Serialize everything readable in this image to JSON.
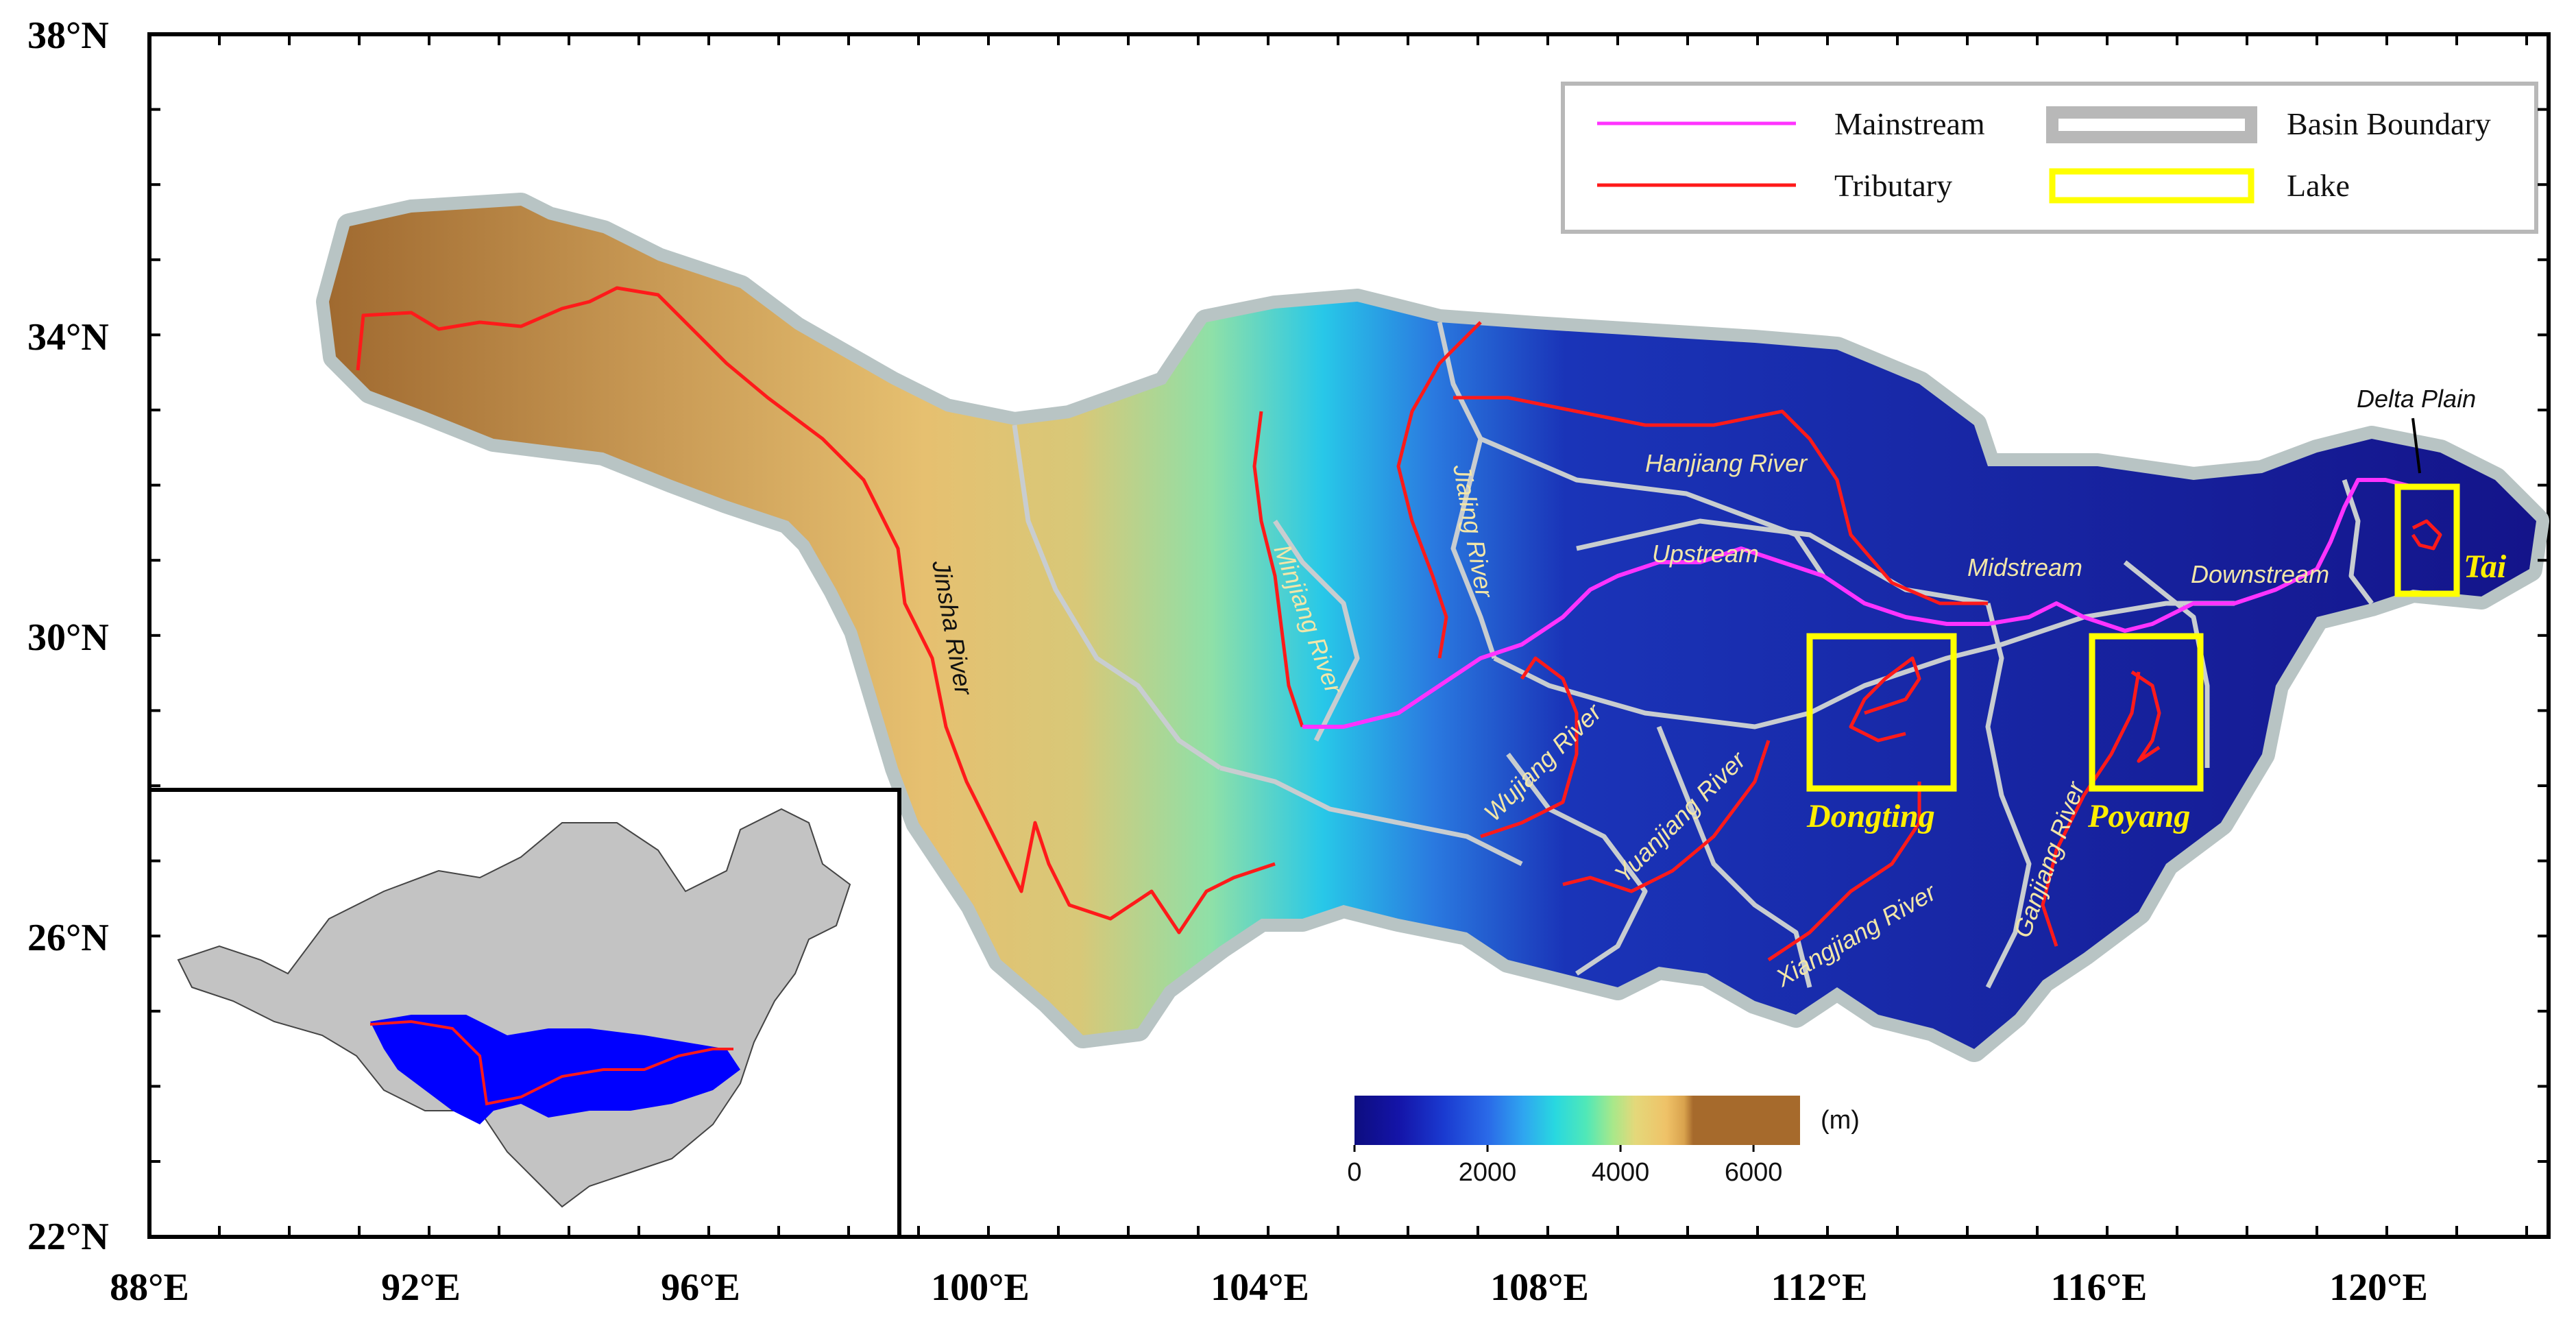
{
  "colors": {
    "mainstream": "#ff33ff",
    "tributary": "#ff1a1a",
    "basin_boundary": "#b8c0c0",
    "lake": "#ffff00",
    "inset_land": "#c3c3c3",
    "inset_basin": "#0000ff"
  },
  "axes": {
    "lat_labels": [
      "38°N",
      "34°N",
      "30°N",
      "26°N",
      "22°N"
    ],
    "lon_labels": [
      "88°E",
      "92°E",
      "96°E",
      "100°E",
      "104°E",
      "108°E",
      "112°E",
      "116°E",
      "120°E"
    ]
  },
  "legend": {
    "mainstream": "Mainstream",
    "tributary": "Tributary",
    "basin_boundary": "Basin Boundary",
    "lake": "Lake"
  },
  "rivers": {
    "jinsha": "Jinsha River",
    "minjiang": "Minjiang River",
    "jialing": "Jialing River",
    "hanjiang": "Hanjiang River",
    "wujiang": "Wujiang River",
    "yuanjiang": "Yuanjiang River",
    "xiangjiang": "Xiangjiang River",
    "ganjiang": "Ganjiang River"
  },
  "reaches": {
    "upstream": "Upstream",
    "midstream": "Midstream",
    "downstream": "Downstream",
    "delta": "Delta Plain"
  },
  "lakes": {
    "dongting": "Dongting",
    "poyang": "Poyang",
    "tai": "Tai"
  },
  "colorbar": {
    "unit": "(m)",
    "ticks": [
      "0",
      "2000",
      "4000",
      "6000"
    ],
    "range": [
      0,
      6700
    ],
    "stops": [
      "#0d0d80",
      "#1414a8",
      "#1a3ad0",
      "#2a6ae8",
      "#2fa6f0",
      "#28d8e0",
      "#50e8b8",
      "#a8e88a",
      "#e4d87a",
      "#efc268",
      "#d9a24d",
      "#a66a2c"
    ]
  }
}
